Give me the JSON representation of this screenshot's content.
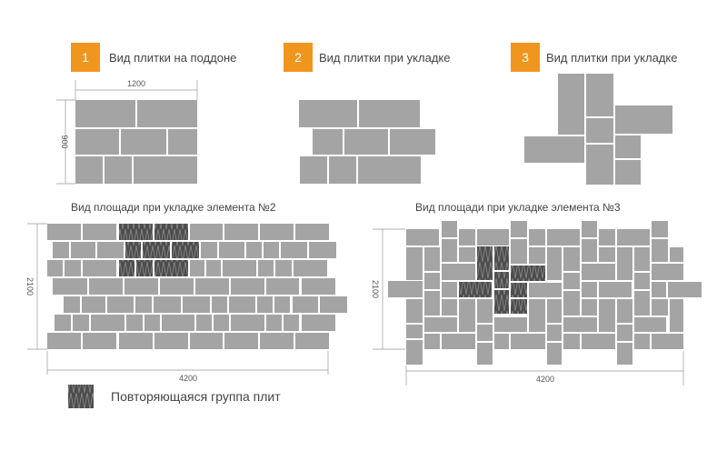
{
  "colors": {
    "accent": "#f0961e",
    "tile": "#a4a4a4",
    "repeat_tile": "#4d4d4d",
    "line": "#999999"
  },
  "panels": [
    {
      "number": "1",
      "title": "Вид плитки на поддоне",
      "width_label": "1200",
      "height_label": "900"
    },
    {
      "number": "2",
      "title": "Вид плитки при укладке"
    },
    {
      "number": "3",
      "title": "Вид плитки при укладке"
    }
  ],
  "areas": [
    {
      "title": "Вид площади при укладке элемента №2",
      "height_label": "2100",
      "width_label": "4200"
    },
    {
      "title": "Вид площади при укладке элемента №3",
      "height_label": "2100",
      "width_label": "4200"
    }
  ],
  "legend": {
    "label": "Повторяющаяся группа плит",
    "icon": "zigzag-hatched-tile"
  }
}
